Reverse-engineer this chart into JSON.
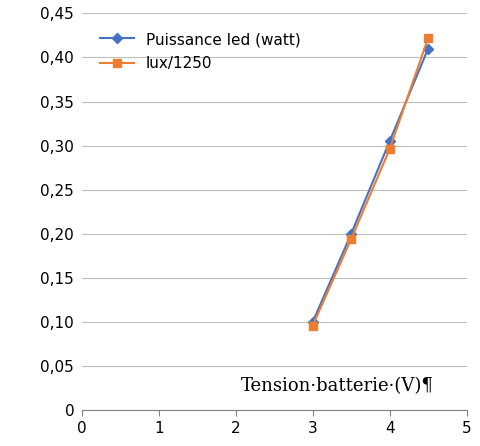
{
  "series": [
    {
      "label": "Puissance led (watt)",
      "x": [
        3,
        3.5,
        4,
        4.5
      ],
      "y": [
        0.1,
        0.2,
        0.305,
        0.41
      ],
      "color": "#4472C4",
      "marker": "D",
      "marker_size": 5,
      "linewidth": 1.5,
      "zorder": 2
    },
    {
      "label": "lux/1250",
      "x": [
        3,
        3.5,
        4,
        4.5
      ],
      "y": [
        0.096,
        0.194,
        0.296,
        0.422
      ],
      "color": "#ED7D31",
      "marker": "s",
      "marker_size": 6,
      "linewidth": 1.5,
      "zorder": 3
    }
  ],
  "xlim": [
    0,
    5
  ],
  "ylim": [
    0,
    0.45
  ],
  "xticks": [
    0,
    1,
    2,
    3,
    4,
    5
  ],
  "yticks": [
    0,
    0.05,
    0.1,
    0.15,
    0.2,
    0.25,
    0.3,
    0.35,
    0.4,
    0.45
  ],
  "xlabel_text": "Tension·batterie·(V)¶",
  "background_color": "#FFFFFF",
  "grid_color": "#BFBFBF",
  "tick_label_fontsize": 11,
  "legend_fontsize": 11,
  "xlabel_fontsize": 13
}
